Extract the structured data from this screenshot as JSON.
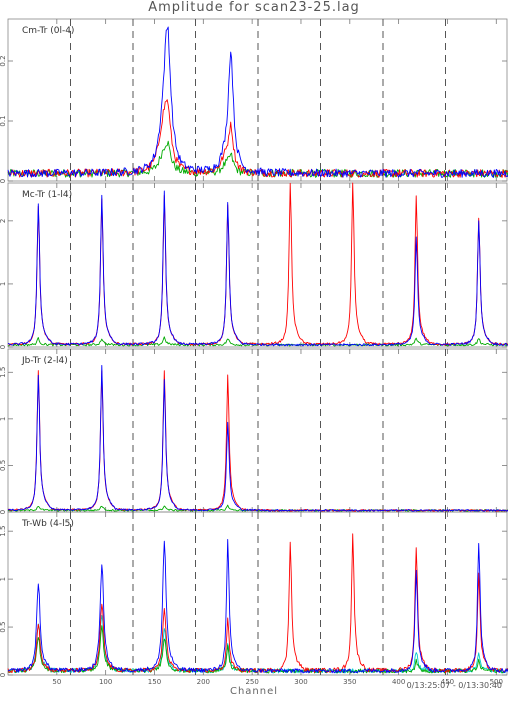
{
  "chart_data": {
    "type": "line",
    "title": "Amplitude for scan23-25.lag",
    "xlabel": "Channel",
    "time_range": "0/13:25:07 - 0/13:30:40",
    "xlim": [
      0,
      512
    ],
    "x_ticks": [
      50,
      100,
      150,
      200,
      250,
      300,
      350,
      400,
      450,
      500
    ],
    "divider_channels": [
      64,
      128,
      192,
      256,
      320,
      384,
      448
    ],
    "series_colors": [
      "#0000ff",
      "#ff0000",
      "#00aa00",
      "#00cccc"
    ],
    "panels": [
      {
        "label": "Cm-Tr (0l-4)",
        "ylim": [
          0,
          0.27
        ],
        "y_ticks": [
          0,
          0.1,
          0.2
        ],
        "y_tick_labels": [
          "0",
          "0.1",
          "0.2"
        ],
        "noise": 0.015,
        "peaks": [
          {
            "x": 158,
            "amps": [
              0.04,
              0.055,
              0.02,
              0.0
            ],
            "width": 5
          },
          {
            "x": 163,
            "amps": [
              0.22,
              0.09,
              0.04,
              0.0
            ],
            "width": 4
          },
          {
            "x": 222,
            "amps": [
              0.02,
              0.02,
              0.01,
              0.0
            ],
            "width": 5
          },
          {
            "x": 228,
            "amps": [
              0.19,
              0.07,
              0.025,
              0.0
            ],
            "width": 3
          }
        ]
      },
      {
        "label": "Mc-Tr (1-l4)",
        "ylim": [
          0,
          2.6
        ],
        "y_ticks": [
          0,
          1,
          2
        ],
        "y_tick_labels": [
          "0",
          "1",
          "2"
        ],
        "noise": 0.04,
        "peaks": [
          {
            "x": 31,
            "amps": [
              2.25,
              2.2,
              0.1,
              0.0
            ],
            "width": 1.5
          },
          {
            "x": 96,
            "amps": [
              2.38,
              2.3,
              0.1,
              0.0
            ],
            "width": 1.5
          },
          {
            "x": 160,
            "amps": [
              2.42,
              2.35,
              0.12,
              0.0
            ],
            "width": 1.5
          },
          {
            "x": 225,
            "amps": [
              2.25,
              2.2,
              0.1,
              0.0
            ],
            "width": 1.5
          },
          {
            "x": 289,
            "amps": [
              0.0,
              2.55,
              0.0,
              0.0
            ],
            "width": 1.5
          },
          {
            "x": 353,
            "amps": [
              0.0,
              2.58,
              0.0,
              0.0
            ],
            "width": 1.5
          },
          {
            "x": 418,
            "amps": [
              1.7,
              2.35,
              0.1,
              0.0
            ],
            "width": 1.5
          },
          {
            "x": 482,
            "amps": [
              1.98,
              2.0,
              0.1,
              0.0
            ],
            "width": 1.5
          }
        ]
      },
      {
        "label": "Jb-Tr (2-l4)",
        "ylim": [
          0,
          1.75
        ],
        "y_ticks": [
          0,
          0.5,
          1,
          1.5
        ],
        "y_tick_labels": [
          "0",
          "0.5",
          "1",
          "1.5"
        ],
        "noise": 0.02,
        "peaks": [
          {
            "x": 31,
            "amps": [
              1.45,
              1.5,
              0.05,
              0.0
            ],
            "width": 1.5
          },
          {
            "x": 96,
            "amps": [
              1.55,
              1.5,
              0.05,
              0.0
            ],
            "width": 1.5
          },
          {
            "x": 160,
            "amps": [
              1.4,
              1.5,
              0.05,
              0.0
            ],
            "width": 1.5
          },
          {
            "x": 225,
            "amps": [
              0.95,
              1.45,
              0.05,
              0.0
            ],
            "width": 1.5
          }
        ]
      },
      {
        "label": "Tr-Wb (4-l5)",
        "ylim": [
          0,
          1.7
        ],
        "y_ticks": [
          0,
          0.5,
          1,
          1.5
        ],
        "y_tick_labels": [
          "0",
          "0.5",
          "1",
          "1.5"
        ],
        "noise": 0.05,
        "peaks": [
          {
            "x": 31,
            "amps": [
              0.9,
              0.5,
              0.35,
              0.5
            ],
            "width": 2
          },
          {
            "x": 96,
            "amps": [
              1.12,
              0.7,
              0.45,
              0.6
            ],
            "width": 2
          },
          {
            "x": 160,
            "amps": [
              1.35,
              0.65,
              0.35,
              0.45
            ],
            "width": 2
          },
          {
            "x": 225,
            "amps": [
              1.35,
              0.55,
              0.25,
              0.3
            ],
            "width": 1.5
          },
          {
            "x": 289,
            "amps": [
              0.0,
              1.35,
              0.0,
              0.0
            ],
            "width": 1.5
          },
          {
            "x": 353,
            "amps": [
              0.0,
              1.42,
              0.0,
              0.0
            ],
            "width": 1.5
          },
          {
            "x": 418,
            "amps": [
              1.05,
              1.3,
              0.1,
              0.2
            ],
            "width": 1.5
          },
          {
            "x": 482,
            "amps": [
              1.35,
              1.0,
              0.1,
              0.2
            ],
            "width": 1.5
          }
        ]
      }
    ]
  }
}
